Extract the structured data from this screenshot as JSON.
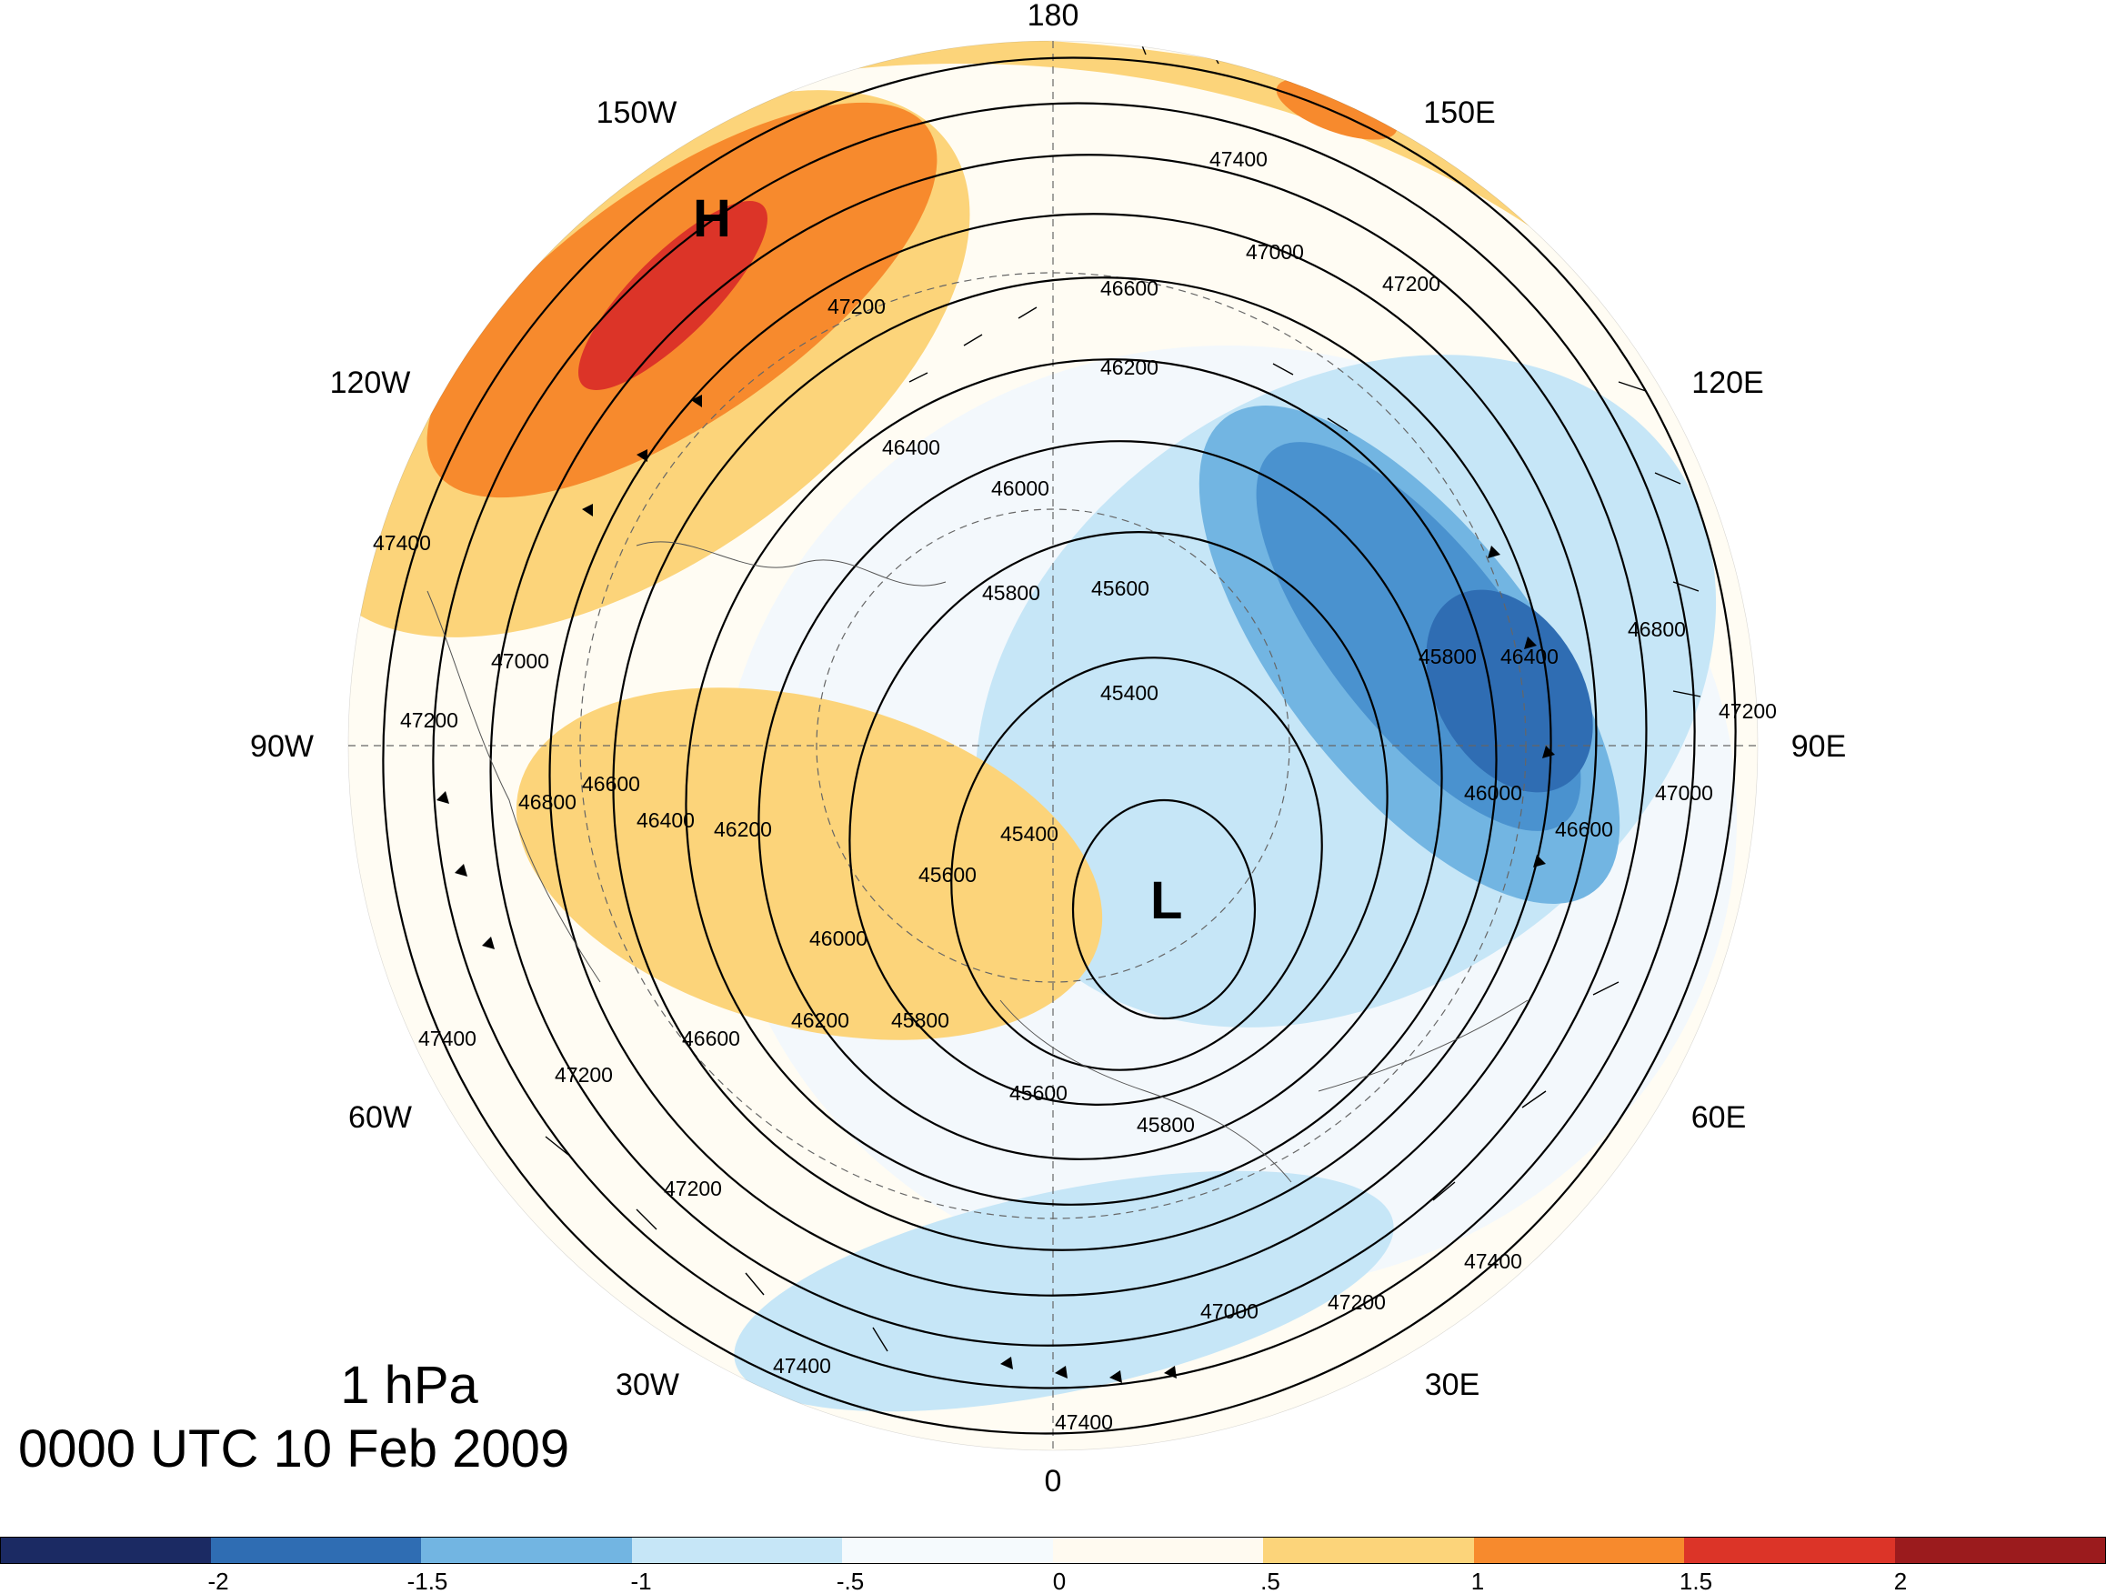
{
  "title": {
    "level": "1 hPa",
    "time": "0000 UTC 10 Feb 2009"
  },
  "longitude_labels": [
    "180",
    "150E",
    "120E",
    "90E",
    "60E",
    "30E",
    "0",
    "30W",
    "60W",
    "90W",
    "120W",
    "150W"
  ],
  "centers": {
    "high": "H",
    "low": "L"
  },
  "contour_labels": [
    "47400",
    "47200",
    "47000",
    "46800",
    "46600",
    "46400",
    "46200",
    "46000",
    "45800",
    "45600",
    "45400"
  ],
  "anomaly_colorbar": {
    "ticks": [
      "-2",
      "-1.5",
      "-1",
      "-.5",
      "0",
      ".5",
      "1",
      "1.5",
      "2"
    ],
    "colors": [
      "#1b2a63",
      "#2f6db3",
      "#72b5e2",
      "#c6e6f7",
      "#f5fafd",
      "#fffaf0",
      "#fcd47a",
      "#f78a2d",
      "#dc3428",
      "#9b1b1d"
    ]
  }
}
